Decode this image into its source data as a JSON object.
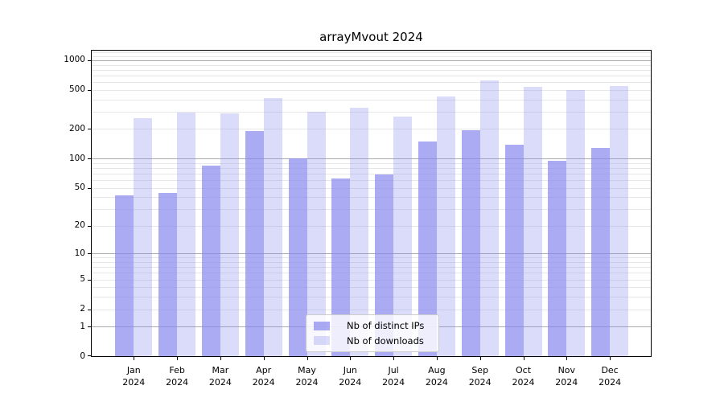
{
  "chart_data": {
    "type": "bar",
    "title": "arrayMvout 2024",
    "categories": [
      "Jan",
      "Feb",
      "Mar",
      "Apr",
      "May",
      "Jun",
      "Jul",
      "Aug",
      "Sep",
      "Oct",
      "Nov",
      "Dec"
    ],
    "x_tick_year": "2024",
    "series": [
      {
        "name": "Nb of distinct IPs",
        "opacity": 0.7,
        "values": [
          42,
          44,
          85,
          190,
          100,
          62,
          68,
          150,
          194,
          138,
          94,
          129
        ]
      },
      {
        "name": "Nb of downloads",
        "opacity": 0.3,
        "values": [
          260,
          295,
          290,
          410,
          297,
          330,
          270,
          425,
          625,
          540,
          495,
          545
        ]
      }
    ],
    "y_axis": {
      "scale": "log10(v+1)",
      "ylim": [
        0,
        1250
      ],
      "tick_values": [
        0,
        1,
        2,
        5,
        10,
        20,
        50,
        100,
        200,
        500,
        1000
      ],
      "major_gridlines": [
        1,
        10,
        100,
        1000
      ],
      "minor_gridlines": [
        2,
        3,
        4,
        5,
        6,
        7,
        8,
        9,
        20,
        30,
        40,
        50,
        60,
        70,
        80,
        90,
        200,
        300,
        400,
        500,
        600,
        700,
        800,
        900,
        1100,
        1200
      ]
    },
    "grid": "horizontal",
    "legend_position": "lower center"
  },
  "colors": {
    "bar_base": "#8888ee",
    "major_grid": "#ababab",
    "minor_grid": "#e7e7e7",
    "axis_line": "#000000",
    "text": "#000000",
    "background": "#ffffff",
    "legend_border": "#cccccc",
    "legend_bg": "#ffffff"
  }
}
